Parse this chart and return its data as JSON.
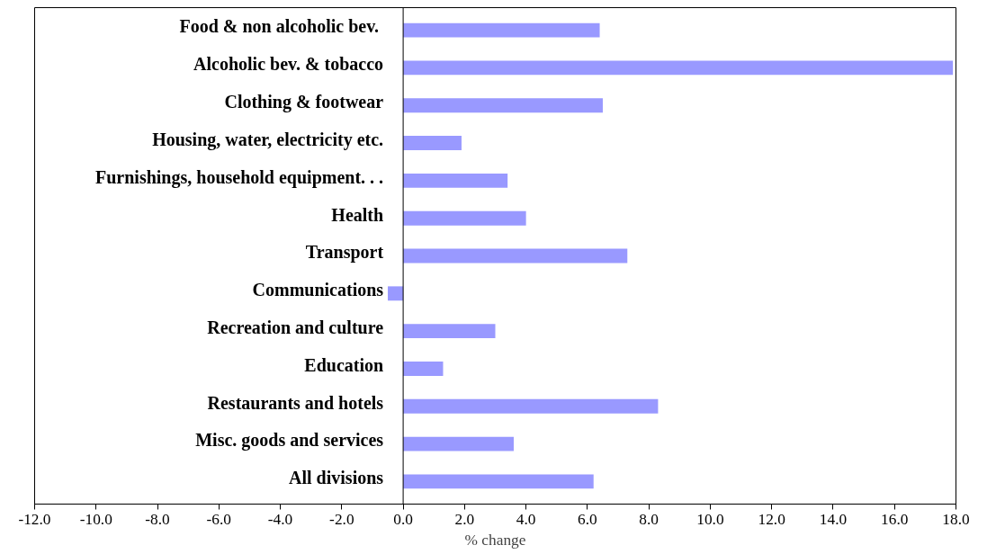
{
  "chart_data": {
    "type": "bar",
    "orientation": "horizontal",
    "xlabel": "% change",
    "categories": [
      "Food & non alcoholic  bev.",
      "Alcoholic bev. & tobacco",
      "Clothing & footwear",
      "Housing, water, electricity etc.",
      "Furnishings, household equipment. . .",
      "Health",
      "Transport",
      "Communications",
      "Recreation and culture",
      "Education",
      "Restaurants and hotels",
      "Misc. goods and services",
      "All divisions"
    ],
    "values": [
      6.4,
      17.9,
      6.5,
      1.9,
      3.4,
      4.0,
      7.3,
      -0.5,
      3.0,
      1.3,
      8.3,
      3.6,
      6.2
    ],
    "color": "#9999ff",
    "xlim": [
      -12,
      18
    ],
    "xticks": [
      {
        "value": -12,
        "label": "-12.0"
      },
      {
        "value": -10,
        "label": "-10.0"
      },
      {
        "value": -8,
        "label": "-8.0"
      },
      {
        "value": -6,
        "label": "-6.0"
      },
      {
        "value": -4,
        "label": "-4.0"
      },
      {
        "value": -2,
        "label": "-2.0"
      },
      {
        "value": 0,
        "label": "0.0"
      },
      {
        "value": 2,
        "label": "2.0"
      },
      {
        "value": 4,
        "label": "4.0"
      },
      {
        "value": 6,
        "label": "6.0"
      },
      {
        "value": 8,
        "label": "8.0"
      },
      {
        "value": 10,
        "label": "10.0"
      },
      {
        "value": 12,
        "label": "12.0"
      },
      {
        "value": 14,
        "label": "14.0"
      },
      {
        "value": 16,
        "label": "16.0"
      },
      {
        "value": 18,
        "label": "18.0"
      }
    ],
    "grid": false
  }
}
